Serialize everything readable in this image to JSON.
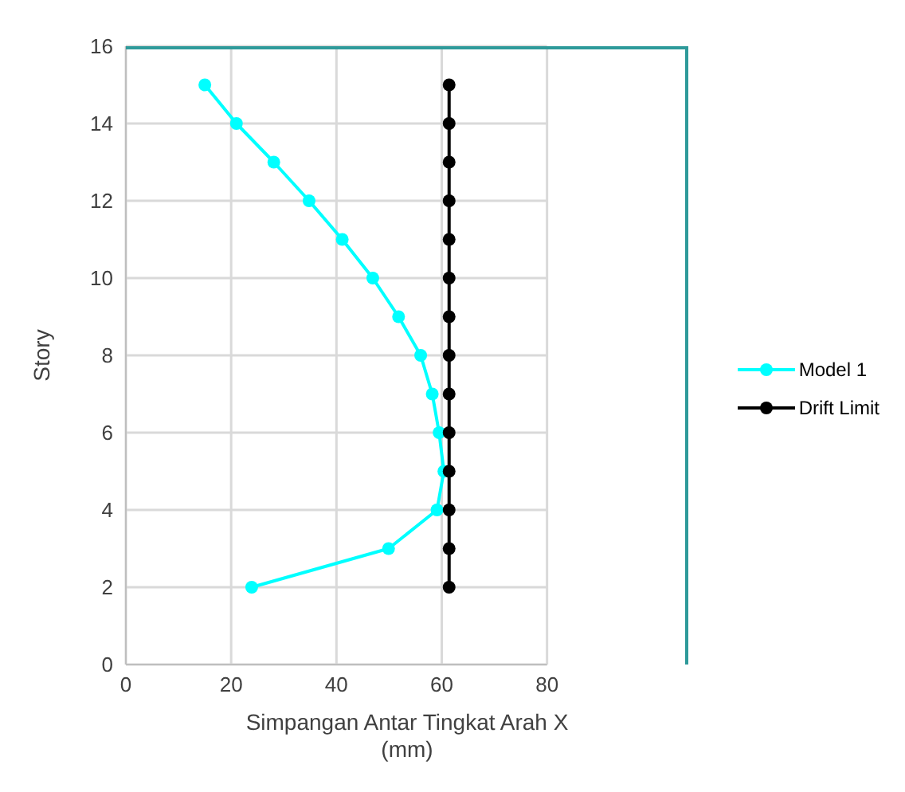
{
  "chart_data": {
    "type": "line",
    "xlabel": "Simpangan Antar Tingkat Arah X (mm)",
    "ylabel": "Story",
    "xlim": [
      0,
      80
    ],
    "xticks": [
      0,
      20,
      40,
      60,
      80
    ],
    "ylim": [
      0,
      16
    ],
    "yticks": [
      0,
      2,
      4,
      6,
      8,
      10,
      12,
      14,
      16
    ],
    "grid": true,
    "legend": "right",
    "marker": "circle",
    "line_style": "solid",
    "series": [
      {
        "name": "Model 1",
        "color": "#00ffff",
        "x": [
          23.9,
          49.9,
          59.1,
          60.4,
          59.5,
          58.2,
          56,
          51.8,
          46.9,
          41.1,
          34.8,
          28.1,
          21,
          15
        ],
        "values": [
          2,
          3,
          4,
          5,
          6,
          7,
          8,
          9,
          10,
          11,
          12,
          13,
          14,
          15
        ]
      },
      {
        "name": "Drift Limit",
        "color": "#000000",
        "x": [
          61.4,
          61.4,
          61.4,
          61.4,
          61.4,
          61.4,
          61.4,
          61.4,
          61.4,
          61.4,
          61.4,
          61.4,
          61.4,
          61.4
        ],
        "values": [
          2,
          3,
          4,
          5,
          6,
          7,
          8,
          9,
          10,
          11,
          12,
          13,
          14,
          15
        ]
      }
    ]
  }
}
